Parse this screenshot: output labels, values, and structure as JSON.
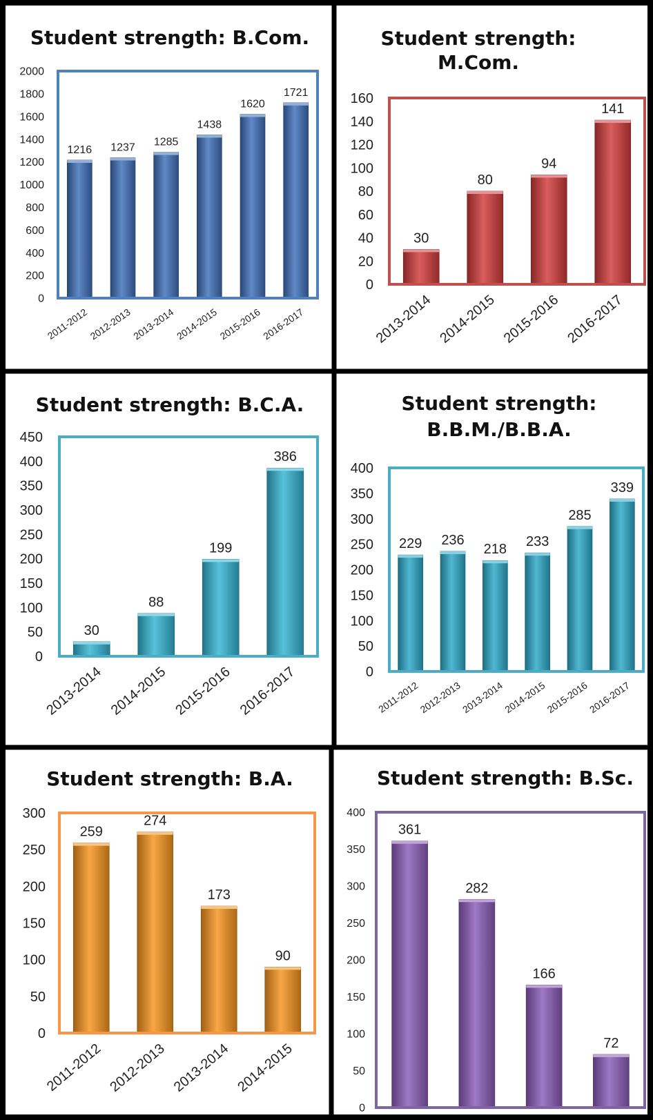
{
  "chart_data": [
    {
      "id": "bcom",
      "type": "bar",
      "title": [
        "Student strength: B.Com."
      ],
      "categories": [
        "2011-2012",
        "2012-2013",
        "2013-2014",
        "2014-2015",
        "2015-2016",
        "2016-2017"
      ],
      "values": [
        1216,
        1237,
        1285,
        1438,
        1620,
        1721
      ],
      "ylim": [
        0,
        2000
      ],
      "yticks": [
        0,
        200,
        400,
        600,
        800,
        1000,
        1200,
        1400,
        1600,
        1800,
        2000
      ],
      "color": "#3d6fb8",
      "frame_color": "#4f81bd",
      "grid": false,
      "legend": "none"
    },
    {
      "id": "mcom",
      "type": "bar",
      "title": [
        "Student strength:",
        "M.Com."
      ],
      "categories": [
        "2013-2014",
        "2014-2015",
        "2015-2016",
        "2016-2017"
      ],
      "values": [
        30,
        80,
        94,
        141
      ],
      "ylim": [
        0,
        160
      ],
      "yticks": [
        0,
        20,
        40,
        60,
        80,
        100,
        120,
        140,
        160
      ],
      "color": "#d23b3b",
      "frame_color": "#c0504d",
      "grid": false,
      "legend": "none"
    },
    {
      "id": "bca",
      "type": "bar",
      "title": [
        "Student strength:  B.C.A."
      ],
      "categories": [
        "2013-2014",
        "2014-2015",
        "2015-2016",
        "2016-2017"
      ],
      "values": [
        30,
        88,
        199,
        386
      ],
      "ylim": [
        0,
        450
      ],
      "yticks": [
        0,
        50,
        100,
        150,
        200,
        250,
        300,
        350,
        400,
        450
      ],
      "color": "#33b4d3",
      "frame_color": "#4bacc6",
      "grid": false,
      "legend": "none"
    },
    {
      "id": "bbm",
      "type": "bar",
      "title": [
        "Student strength:",
        "B.B.M./B.B.A."
      ],
      "categories": [
        "2011-2012",
        "2012-2013",
        "2013-2014",
        "2014-2015",
        "2015-2016",
        "2016-2017"
      ],
      "values": [
        229,
        236,
        218,
        233,
        285,
        339
      ],
      "ylim": [
        0,
        400
      ],
      "yticks": [
        0,
        50,
        100,
        150,
        200,
        250,
        300,
        350,
        400
      ],
      "color": "#2ba9c8",
      "frame_color": "#4bacc6",
      "grid": false,
      "legend": "none"
    },
    {
      "id": "ba",
      "type": "bar",
      "title": [
        "Student strength: B.A."
      ],
      "categories": [
        "2011-2012",
        "2012-2013",
        "2013-2014",
        "2014-2015"
      ],
      "values": [
        259,
        274,
        173,
        90
      ],
      "ylim": [
        0,
        300
      ],
      "yticks": [
        0,
        50,
        100,
        150,
        200,
        250,
        300
      ],
      "color": "#f7941d",
      "frame_color": "#f79646",
      "grid": false,
      "legend": "none"
    },
    {
      "id": "bsc",
      "type": "bar",
      "title": [
        "Student strength: B.Sc."
      ],
      "categories": [
        "2011-2012",
        "2012-2013",
        "2013-2014",
        "2014-2015"
      ],
      "values": [
        361,
        282,
        166,
        72
      ],
      "ylim": [
        0,
        400
      ],
      "yticks": [
        0,
        50,
        100,
        150,
        200,
        250,
        300,
        350,
        400
      ],
      "color": "#8a5bb8",
      "frame_color": "#8064a2",
      "grid": false,
      "legend": "none"
    }
  ]
}
